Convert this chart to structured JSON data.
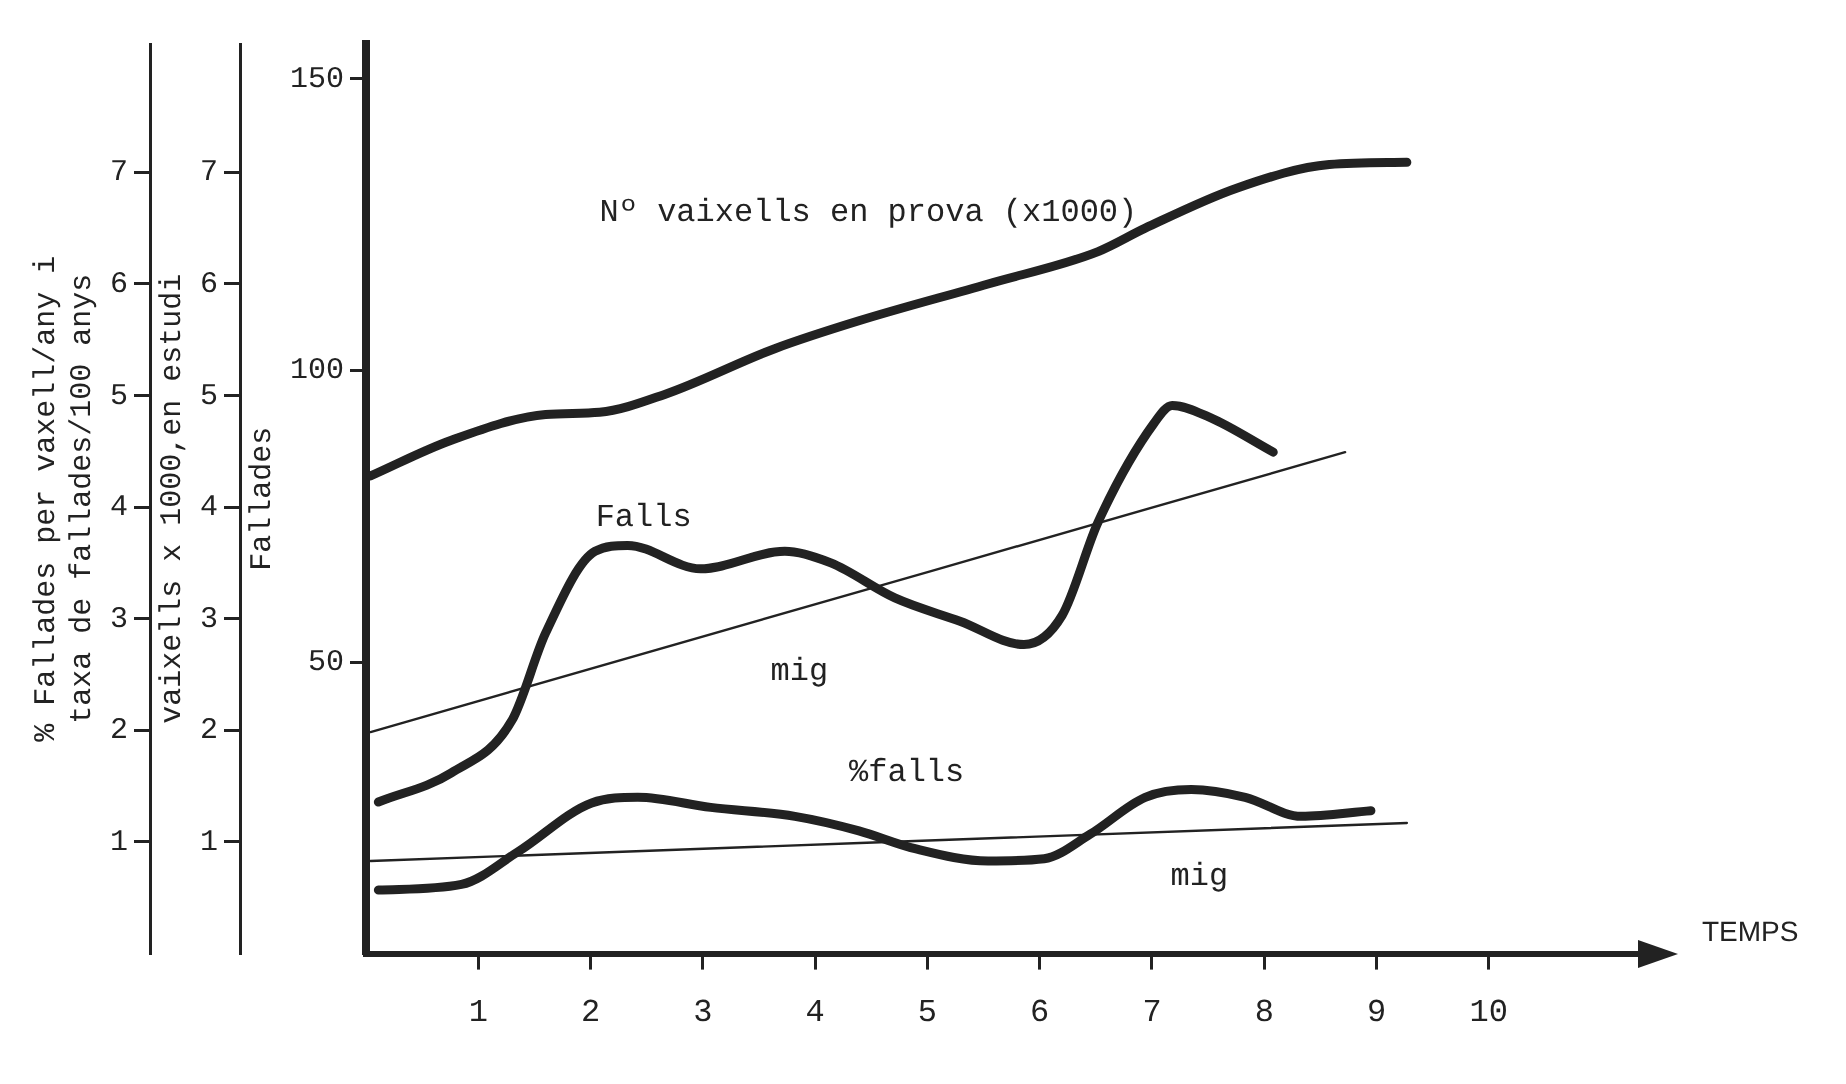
{
  "chart_data": {
    "type": "line",
    "ylabel": "% Fallades per vaxell/any i\ntaxa de fallades/100 anys",
    "y2label": "vaixells x 1000,en estudi",
    "y3label": "Fallades",
    "xlabel": "TEMPS",
    "xlim": [
      0,
      11.4
    ],
    "xticks": [
      1,
      2,
      3,
      4,
      5,
      6,
      7,
      8,
      9,
      10
    ],
    "ylim": [
      0,
      8.15
    ],
    "yticks": [
      1,
      2,
      3,
      4,
      5,
      6,
      7
    ],
    "y2lim": [
      0,
      8.15
    ],
    "y2ticks": [
      1,
      2,
      3,
      4,
      5,
      6,
      7
    ],
    "y3lim": [
      0,
      156
    ],
    "y3ticks": [
      50,
      100,
      150
    ],
    "grid": false,
    "legend": false,
    "marker": "none",
    "series": [
      {
        "name": "Nº vaixells en prova (x1000)",
        "color": "#222222",
        "axis": "y2",
        "x": [
          0.04,
          0.76,
          1.6,
          2.08,
          2.66,
          3.64,
          4.39,
          5.54,
          6.52,
          6.94,
          7.76,
          8.58,
          9.27
        ],
        "values": [
          4.28,
          4.6,
          4.83,
          4.85,
          5.01,
          5.42,
          5.67,
          6.0,
          6.29,
          6.5,
          6.86,
          7.07,
          7.09
        ]
      },
      {
        "name": "Falls",
        "color": "#222222",
        "axis": "y3",
        "x": [
          0.11,
          0.76,
          1.3,
          1.6,
          2.04,
          2.33,
          2.98,
          3.73,
          4.14,
          4.71,
          5.29,
          5.86,
          6.2,
          6.52,
          7.02,
          7.18,
          7.51,
          8.08
        ],
        "values": [
          26,
          31,
          40,
          55,
          69,
          70,
          66,
          69,
          67,
          61,
          57,
          53,
          58,
          74,
          91,
          94,
          92,
          86
        ]
      },
      {
        "name": "mig",
        "color": "#222222",
        "axis": "y3",
        "x": [
          0.04,
          8.72
        ],
        "values": [
          38,
          86
        ]
      },
      {
        "name": "%falls",
        "color": "#222222",
        "axis": "y",
        "x": [
          0.11,
          0.85,
          1.35,
          2.01,
          2.42,
          3.07,
          3.82,
          4.39,
          4.89,
          5.54,
          6.04,
          6.45,
          6.94,
          7.35,
          7.83,
          8.33,
          8.95
        ],
        "values": [
          0.57,
          0.62,
          0.91,
          1.35,
          1.4,
          1.31,
          1.23,
          1.1,
          0.94,
          0.83,
          0.85,
          1.07,
          1.4,
          1.47,
          1.4,
          1.23,
          1.28
        ]
      },
      {
        "name": "mig",
        "color": "#222222",
        "axis": "y",
        "x": [
          0.04,
          9.27
        ],
        "values": [
          0.83,
          1.17
        ]
      }
    ]
  }
}
